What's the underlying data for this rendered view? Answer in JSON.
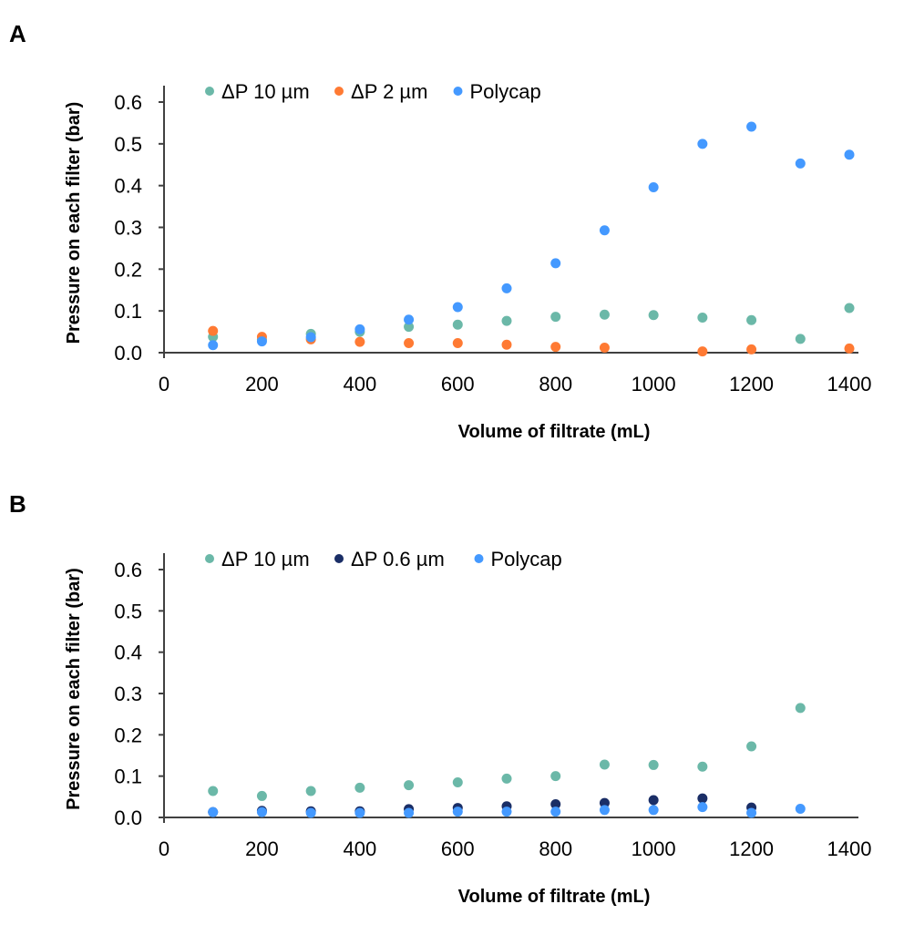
{
  "panels": [
    {
      "label": "A"
    },
    {
      "label": "B"
    }
  ],
  "colors": {
    "teal": "#6bb8a8",
    "orange": "#ff7a33",
    "blue": "#4499ff",
    "navy": "#1a2e66",
    "axis": "#404040"
  },
  "chart_data": [
    {
      "type": "scatter",
      "panel": "A",
      "title": "",
      "xlabel": "Volume of filtrate (mL)",
      "ylabel": "Pressure on each filter (bar)",
      "xlim": [
        0,
        1400
      ],
      "ylim": [
        0,
        0.6
      ],
      "xticks": [
        0,
        200,
        400,
        600,
        800,
        1000,
        1200,
        1400
      ],
      "yticks": [
        "0.0",
        "0.1",
        "0.2",
        "0.3",
        "0.4",
        "0.5",
        "0.6"
      ],
      "grid": false,
      "legend_position": "top",
      "series": [
        {
          "name": "ΔP 10 µm",
          "color": "#6bb8a8",
          "x": [
            100,
            200,
            300,
            400,
            500,
            600,
            700,
            800,
            900,
            1000,
            1100,
            1200,
            1300,
            1400
          ],
          "y": [
            0.038,
            0.031,
            0.045,
            0.05,
            0.062,
            0.067,
            0.076,
            0.086,
            0.091,
            0.09,
            0.084,
            0.078,
            0.033,
            0.107
          ]
        },
        {
          "name": "ΔP 2 µm",
          "color": "#ff7a33",
          "x": [
            100,
            200,
            300,
            400,
            500,
            600,
            700,
            800,
            900,
            1100,
            1200,
            1400
          ],
          "y": [
            0.052,
            0.038,
            0.032,
            0.026,
            0.023,
            0.023,
            0.019,
            0.014,
            0.012,
            0.003,
            0.008,
            0.01
          ]
        },
        {
          "name": "Polycap",
          "color": "#4499ff",
          "x": [
            100,
            200,
            300,
            400,
            500,
            600,
            700,
            800,
            900,
            1000,
            1100,
            1200,
            1300,
            1400
          ],
          "y": [
            0.018,
            0.027,
            0.037,
            0.056,
            0.079,
            0.109,
            0.154,
            0.214,
            0.293,
            0.396,
            0.5,
            0.541,
            0.453,
            0.474
          ]
        }
      ]
    },
    {
      "type": "scatter",
      "panel": "B",
      "title": "",
      "xlabel": "Volume of filtrate (mL)",
      "ylabel": "Pressure on each filter (bar)",
      "xlim": [
        0,
        1400
      ],
      "ylim": [
        0,
        0.6
      ],
      "xticks": [
        0,
        200,
        400,
        600,
        800,
        1000,
        1200,
        1400
      ],
      "yticks": [
        "0.0",
        "0.1",
        "0.2",
        "0.3",
        "0.4",
        "0.5",
        "0.6"
      ],
      "grid": false,
      "legend_position": "top",
      "series": [
        {
          "name": "ΔP 10 µm",
          "color": "#6bb8a8",
          "x": [
            100,
            200,
            300,
            400,
            500,
            600,
            700,
            800,
            900,
            1000,
            1100,
            1200,
            1300
          ],
          "y": [
            0.064,
            0.052,
            0.064,
            0.072,
            0.078,
            0.085,
            0.094,
            0.1,
            0.128,
            0.127,
            0.123,
            0.172,
            0.265
          ]
        },
        {
          "name": "ΔP 0.6 µm",
          "color": "#1a2e66",
          "x": [
            100,
            200,
            300,
            400,
            500,
            600,
            700,
            800,
            900,
            1000,
            1100,
            1200
          ],
          "y": [
            0.013,
            0.016,
            0.015,
            0.015,
            0.02,
            0.023,
            0.027,
            0.032,
            0.035,
            0.042,
            0.046,
            0.024
          ]
        },
        {
          "name": "Polycap",
          "color": "#4499ff",
          "x": [
            100,
            200,
            300,
            400,
            500,
            600,
            700,
            800,
            900,
            1000,
            1100,
            1200,
            1300
          ],
          "y": [
            0.013,
            0.013,
            0.011,
            0.011,
            0.011,
            0.014,
            0.014,
            0.014,
            0.018,
            0.018,
            0.025,
            0.011,
            0.021
          ]
        }
      ]
    }
  ]
}
